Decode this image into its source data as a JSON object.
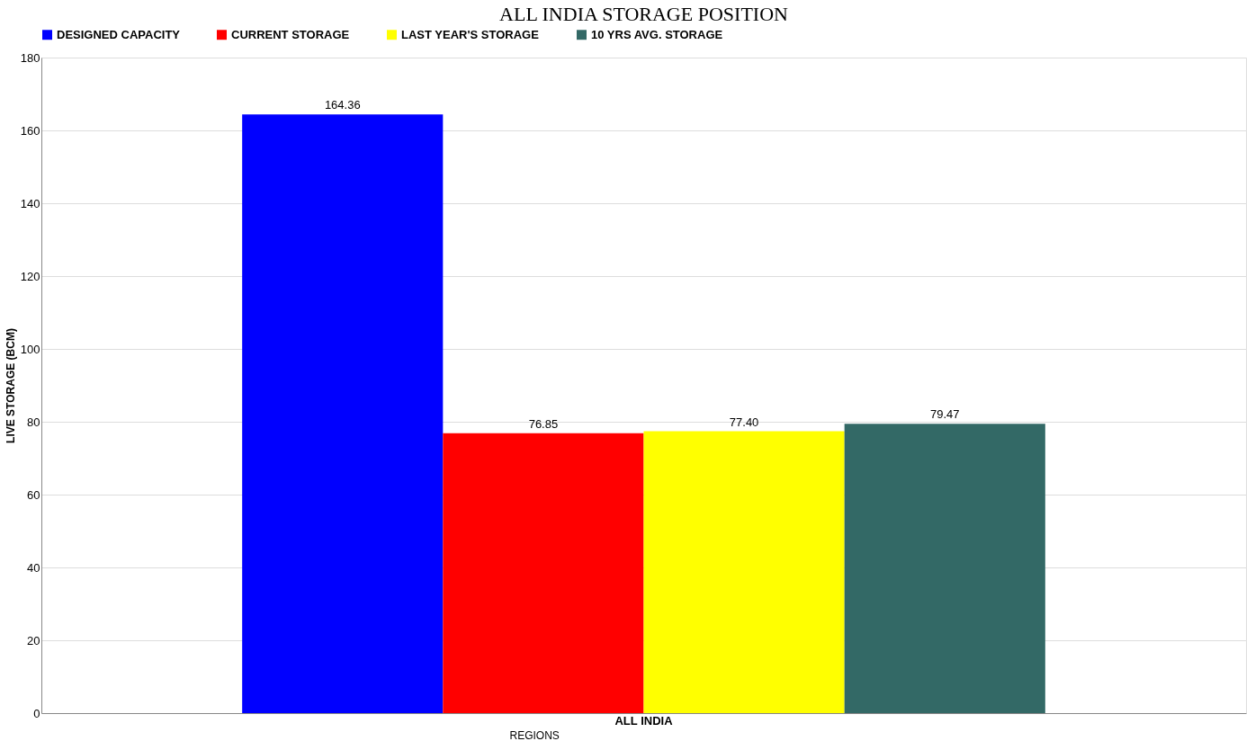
{
  "chart_data": {
    "type": "bar",
    "title": "ALL INDIA STORAGE POSITION",
    "xlabel": "REGIONS",
    "ylabel": "LIVE STORAGE (BCM)",
    "categories": [
      "ALL INDIA"
    ],
    "series": [
      {
        "name": "DESIGNED CAPACITY",
        "color": "#0000ff",
        "values": [
          164.36
        ]
      },
      {
        "name": "CURRENT STORAGE",
        "color": "#ff0000",
        "values": [
          76.85
        ]
      },
      {
        "name": "LAST YEAR'S STORAGE",
        "color": "#ffff00",
        "values": [
          77.4
        ]
      },
      {
        "name": "10 YRS AVG. STORAGE",
        "color": "#336966",
        "values": [
          79.47
        ]
      }
    ],
    "value_labels": [
      "164.36",
      "76.85",
      "77.40",
      "79.47"
    ],
    "ylim": [
      0,
      180
    ],
    "yticks": [
      0,
      20,
      40,
      60,
      80,
      100,
      120,
      140,
      160,
      180
    ],
    "grid": "y",
    "legend": "top"
  }
}
